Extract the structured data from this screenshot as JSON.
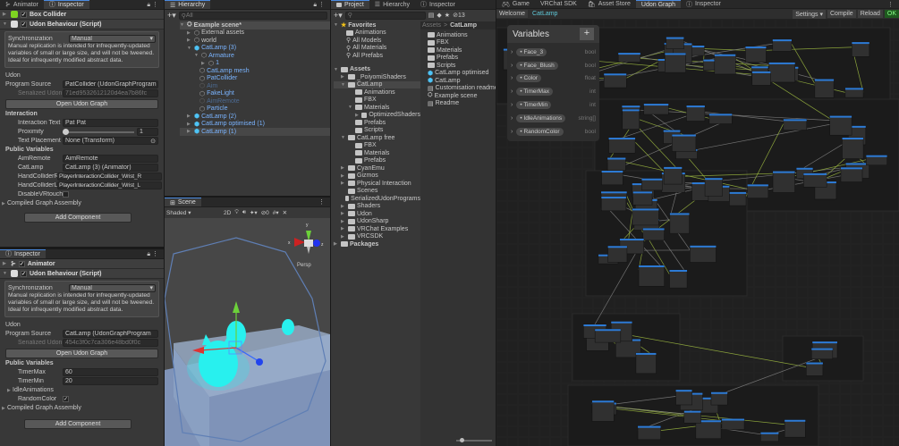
{
  "inspector_top": {
    "tabs": [
      "Animator",
      "Inspector"
    ],
    "box_collider": "Box Collider",
    "udon_behaviour": "Udon Behaviour (Script)",
    "sync_label": "Synchronization",
    "sync_value": "Manual",
    "help": "Manual replication is intended for infrequently-updated variables of small or large size, and will not be tweened. Ideal for infrequently modified abstract data.",
    "udon": "Udon",
    "program_source_label": "Program Source",
    "program_source": "PatCollider (UdonGraphProgram",
    "serialized_label": "Serialized Udon Pr",
    "serialized_value": "71ed9532612120d4ea7b86fc",
    "open_graph": "Open Udon Graph",
    "interaction": "Interaction",
    "interaction_text_label": "Interaction Text",
    "interaction_text": "Pat Pat",
    "proximity_label": "Proximity",
    "proximity": "1",
    "proximity_fraction": 0.0,
    "text_placement_label": "Text Placement",
    "text_placement": "None (Transform)",
    "public_variables": "Public Variables",
    "vars": [
      {
        "name": "AimRemote",
        "value": "AimRemote"
      },
      {
        "name": "CatLamp",
        "value": "CatLamp (3) (Animator)"
      },
      {
        "name": "HandColliderR",
        "value": "PlayerInteractionCollider_Wrist_R"
      },
      {
        "name": "HandColliderL",
        "value": "PlayerInteractionCollider_Wrist_L"
      }
    ],
    "disable_vr_label": "DisableVRtouch",
    "disable_vr": false,
    "compiled": "Compiled Graph Assembly",
    "add_component": "Add Component"
  },
  "inspector_bottom": {
    "tab": "Inspector",
    "animator": "Animator",
    "udon_behaviour": "Udon Behaviour (Script)",
    "sync_label": "Synchronization",
    "sync_value": "Manual",
    "help": "Manual replication is intended for infrequently-updated variables of small or large size, and will not be tweened. Ideal for infrequently modified abstract data.",
    "udon": "Udon",
    "program_source_label": "Program Source",
    "program_source": "CatLamp (UdonGraphProgram",
    "serialized_label": "Serialized Udon Pr",
    "serialized_value": "454c3f0c7ca306e48bd0f0c",
    "open_graph": "Open Udon Graph",
    "public_variables": "Public Variables",
    "timer_max_label": "TimerMax",
    "timer_max": "60",
    "timer_min_label": "TimerMin",
    "timer_min": "20",
    "idle_animations": "IdleAnimations",
    "random_color_label": "RandomColor",
    "random_color": true,
    "compiled": "Compiled Graph Assembly",
    "add_component": "Add Component"
  },
  "hierarchy": {
    "tab": "Hierarchy",
    "search_placeholder": "All",
    "scene": "Example scene*",
    "items": [
      "External assets",
      "world",
      "CatLamp (3)",
      "Armature",
      "1",
      "CatLamp mesh",
      "PatCollider",
      "Aim",
      "FakeLight",
      "AimRemote",
      "Particle",
      "CatLamp (2)",
      "CatLamp optimised (1)",
      "CatLamp (1)"
    ]
  },
  "scene": {
    "tab": "Scene",
    "shading": "Shaded",
    "mode_2d": "2D",
    "hidden_count": "0",
    "persp": "Persp",
    "axis_x": "x",
    "axis_y": "y",
    "axis_z": "z"
  },
  "project": {
    "tabs": [
      "Project",
      "Hierarchy",
      "Inspector"
    ],
    "hidden_count": "13",
    "favorites": "Favorites",
    "fav_items": [
      "Animations",
      "All Models",
      "All Materials",
      "All Prefabs"
    ],
    "assets": "Assets",
    "tree": [
      "_PoiyomiShaders",
      "CatLamp",
      "Animations",
      "FBX",
      "Materials",
      "OptimizedShaders",
      "Prefabs",
      "Scripts",
      "CatLamp free",
      "FBX",
      "Materials",
      "Prefabs",
      "CyanEmu",
      "Gizmos",
      "Physical Interaction",
      "Scenes",
      "SerializedUdonPrograms",
      "Shaders",
      "Udon",
      "UdonSharp",
      "VRChat Examples",
      "VRCSDK"
    ],
    "packages": "Packages",
    "breadcrumb": [
      "Assets",
      "CatLamp"
    ],
    "list": [
      "Animations",
      "FBX",
      "Materials",
      "Prefabs",
      "Scripts",
      "CatLamp optimised",
      "CatLamp",
      "Customisation readme",
      "Example scene",
      "Readme"
    ]
  },
  "graph": {
    "tabs": [
      "Game",
      "VRChat SDK",
      "Asset Store",
      "Udon Graph",
      "Inspector"
    ],
    "welcome": "Welcome",
    "graph_name": "CatLamp",
    "settings": "Settings",
    "compile": "Compile",
    "reload": "Reload",
    "ok": "OK",
    "variables_title": "Variables",
    "add": "+",
    "variables": [
      {
        "name": "Face_3",
        "type": "bool"
      },
      {
        "name": "Face_Blush",
        "type": "bool"
      },
      {
        "name": "Color",
        "type": "float"
      },
      {
        "name": "TimerMax",
        "type": "int"
      },
      {
        "name": "TimerMin",
        "type": "int"
      },
      {
        "name": "IdleAnimations",
        "type": "string[]"
      },
      {
        "name": "RandomColor",
        "type": "bool"
      }
    ],
    "colors": {
      "accent": "#4a8ae0",
      "ok": "#1f5a1f",
      "wire": "#a6c443",
      "node_header": "#2d7bd6"
    }
  }
}
